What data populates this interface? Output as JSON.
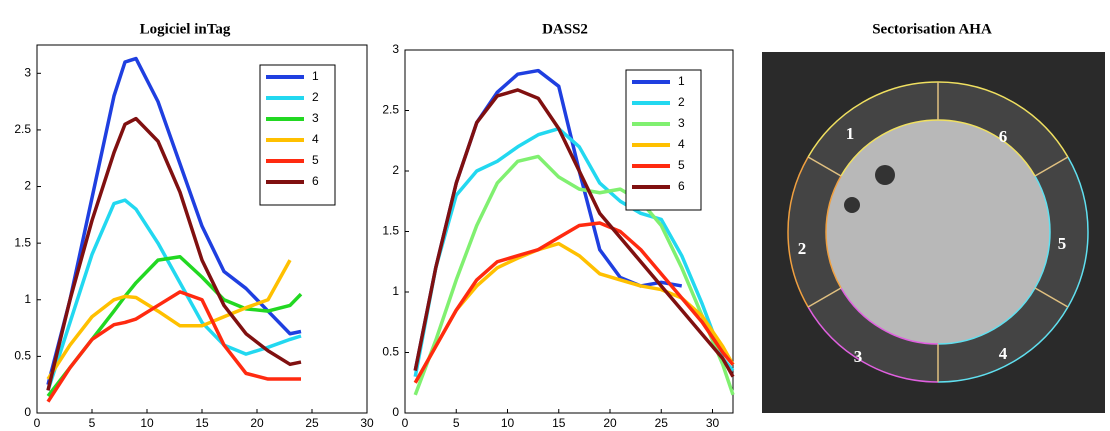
{
  "chart_data": [
    {
      "type": "line",
      "title": "Logiciel inTag",
      "x": [
        1,
        3,
        5,
        7,
        8,
        9,
        11,
        13,
        15,
        17,
        19,
        21,
        23,
        24
      ],
      "xlim": [
        0,
        30
      ],
      "xticks": [
        0,
        5,
        10,
        15,
        20,
        25,
        30
      ],
      "ylim": [
        0,
        3.25
      ],
      "yticks": [
        0,
        0.5,
        1,
        1.5,
        2,
        2.5,
        3
      ],
      "legend": "upper right",
      "series": [
        {
          "name": "1",
          "color": "#1f3fe0",
          "values": [
            0.25,
            1.0,
            1.9,
            2.8,
            3.1,
            3.13,
            2.75,
            2.2,
            1.65,
            1.25,
            1.1,
            0.9,
            0.7,
            0.72
          ]
        },
        {
          "name": "2",
          "color": "#22d8f0",
          "values": [
            0.2,
            0.8,
            1.4,
            1.85,
            1.88,
            1.8,
            1.5,
            1.15,
            0.8,
            0.6,
            0.52,
            0.58,
            0.65,
            0.68
          ]
        },
        {
          "name": "3",
          "color": "#22d822",
          "values": [
            0.15,
            0.4,
            0.65,
            0.9,
            1.03,
            1.15,
            1.35,
            1.38,
            1.2,
            1.0,
            0.92,
            0.9,
            0.95,
            1.05
          ]
        },
        {
          "name": "4",
          "color": "#ffc000",
          "values": [
            0.3,
            0.6,
            0.85,
            1.0,
            1.03,
            1.02,
            0.9,
            0.77,
            0.77,
            0.85,
            0.93,
            1.0,
            1.35,
            null
          ]
        },
        {
          "name": "5",
          "color": "#ff2a10",
          "values": [
            0.1,
            0.4,
            0.65,
            0.78,
            0.8,
            0.83,
            0.95,
            1.07,
            1.0,
            0.6,
            0.35,
            0.3,
            0.3,
            0.3
          ]
        },
        {
          "name": "6",
          "color": "#801010",
          "values": [
            0.2,
            1.0,
            1.7,
            2.3,
            2.55,
            2.6,
            2.4,
            1.95,
            1.35,
            0.95,
            0.7,
            0.55,
            0.43,
            0.45
          ]
        }
      ]
    },
    {
      "type": "line",
      "title": "DASS2",
      "x": [
        1,
        3,
        5,
        7,
        9,
        11,
        13,
        15,
        17,
        19,
        21,
        23,
        25,
        27,
        29,
        31,
        32
      ],
      "xlim": [
        0,
        32
      ],
      "xticks": [
        0,
        5,
        10,
        15,
        20,
        25,
        30
      ],
      "ylim": [
        0,
        3
      ],
      "yticks": [
        0,
        0.5,
        1,
        1.5,
        2,
        2.5,
        3
      ],
      "legend": "upper right",
      "series": [
        {
          "name": "1",
          "color": "#1f3fe0",
          "values": [
            0.35,
            1.2,
            1.9,
            2.4,
            2.65,
            2.8,
            2.83,
            2.7,
            2.0,
            1.35,
            1.12,
            1.05,
            1.08,
            1.05,
            null,
            null,
            null
          ]
        },
        {
          "name": "2",
          "color": "#22d8f0",
          "values": [
            0.3,
            1.2,
            1.8,
            2.0,
            2.08,
            2.2,
            2.3,
            2.35,
            2.2,
            1.9,
            1.75,
            1.65,
            1.6,
            1.3,
            0.9,
            0.45,
            0.35
          ]
        },
        {
          "name": "3",
          "color": "#80f070",
          "values": [
            0.15,
            0.6,
            1.1,
            1.55,
            1.9,
            2.08,
            2.12,
            1.95,
            1.85,
            1.82,
            1.85,
            1.75,
            1.55,
            1.2,
            0.8,
            0.4,
            0.15
          ]
        },
        {
          "name": "4",
          "color": "#ffc000",
          "values": [
            0.25,
            0.55,
            0.85,
            1.05,
            1.2,
            1.28,
            1.35,
            1.4,
            1.3,
            1.15,
            1.1,
            1.05,
            1.02,
            0.95,
            0.8,
            0.55,
            0.4
          ]
        },
        {
          "name": "5",
          "color": "#ff2a10",
          "values": [
            0.25,
            0.55,
            0.85,
            1.1,
            1.25,
            1.3,
            1.35,
            1.45,
            1.55,
            1.57,
            1.5,
            1.35,
            1.15,
            0.95,
            0.75,
            0.5,
            0.4
          ]
        },
        {
          "name": "6",
          "color": "#801010",
          "values": [
            0.35,
            1.2,
            1.9,
            2.4,
            2.62,
            2.67,
            2.6,
            2.35,
            2.0,
            1.65,
            1.45,
            1.25,
            1.05,
            0.85,
            0.65,
            0.45,
            0.3
          ]
        }
      ]
    }
  ],
  "image_panel": {
    "title": "Sectorisation AHA",
    "segment_labels": [
      "1",
      "2",
      "3",
      "4",
      "5",
      "6"
    ]
  }
}
